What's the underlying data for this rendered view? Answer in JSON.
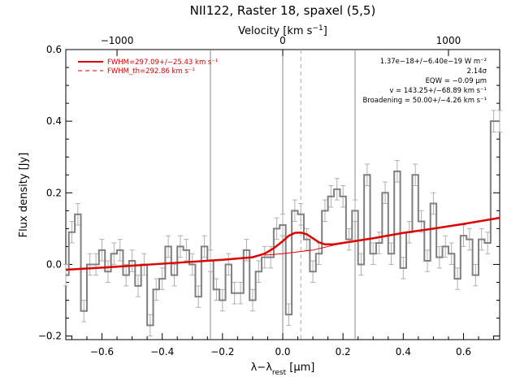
{
  "chart_data": {
    "type": "line",
    "title": "NII122, Raster 18, spaxel (5,5)",
    "xlabel": "λ−λ_rest [μm]",
    "xlabel_parts": {
      "lambda": "λ−λ",
      "sub": "rest",
      "unit": " [μm]"
    },
    "ylabel": "Flux density [Jy]",
    "top_axis_label": "Velocity [km s⁻¹]",
    "top_axis_label_parts": {
      "base": "Velocity [km s",
      "sup": "−1",
      "end": "]"
    },
    "xlim": [
      -0.72,
      0.72
    ],
    "ylim": [
      -0.21,
      0.6
    ],
    "x_ticks": [
      -0.6,
      -0.4,
      -0.2,
      0.0,
      0.2,
      0.4,
      0.6
    ],
    "x_tick_labels": [
      "−0.6",
      "−0.4",
      "−0.2",
      "0.0",
      "0.2",
      "0.4",
      "0.6"
    ],
    "y_ticks": [
      -0.2,
      0.0,
      0.2,
      0.4,
      0.6
    ],
    "y_tick_labels": [
      "−0.2",
      "0.0",
      "0.2",
      "0.4",
      "0.6"
    ],
    "top_ticks": [
      -1000,
      0,
      1000
    ],
    "top_tick_labels": [
      "−1000",
      "0",
      "1000"
    ],
    "top_tick_wavelength": [
      -0.55,
      0.0,
      0.55
    ],
    "vertical_lines": [
      -0.24,
      0.0,
      0.24
    ],
    "dashed_vertical_line": 0.06,
    "legend": [
      {
        "label": "FWHM=297.09+/−25.43 km s⁻¹",
        "style": "solid",
        "color": "#dd0000"
      },
      {
        "label": "FWHM_th=292.86 km s⁻¹",
        "style": "dashed",
        "color": "#dd0000"
      }
    ],
    "annotations": [
      "1.37e−18+/−6.40e−19 W m⁻²",
      "2.14σ",
      "EQW = −0.09 μm",
      "v = 143.25+/−68.89 km s⁻¹",
      "Broadening = 50.00+/−4.26 km s⁻¹"
    ],
    "series": [
      {
        "name": "",
        "style": "histogram",
        "color": "#808080",
        "bin_width": 0.02,
        "x": [
          -0.72,
          -0.7,
          -0.68,
          -0.66,
          -0.64,
          -0.62,
          -0.6,
          -0.58,
          -0.56,
          -0.54,
          -0.52,
          -0.5,
          -0.48,
          -0.46,
          -0.44,
          -0.42,
          -0.4,
          -0.38,
          -0.36,
          -0.34,
          -0.32,
          -0.3,
          -0.28,
          -0.26,
          -0.24,
          -0.22,
          -0.2,
          -0.18,
          -0.16,
          -0.14,
          -0.12,
          -0.1,
          -0.08,
          -0.06,
          -0.04,
          -0.02,
          0.0,
          0.02,
          0.04,
          0.06,
          0.08,
          0.1,
          0.12,
          0.14,
          0.16,
          0.18,
          0.2,
          0.22,
          0.24,
          0.26,
          0.28,
          0.3,
          0.32,
          0.34,
          0.36,
          0.38,
          0.4,
          0.42,
          0.44,
          0.46,
          0.48,
          0.5,
          0.52,
          0.54,
          0.56,
          0.58,
          0.6,
          0.62,
          0.64,
          0.66,
          0.68,
          0.7,
          0.72
        ],
        "values": [
          -0.03,
          0.09,
          0.14,
          -0.13,
          0.0,
          0.0,
          0.04,
          -0.02,
          0.03,
          0.04,
          -0.03,
          0.01,
          -0.06,
          0.0,
          -0.17,
          -0.07,
          -0.04,
          0.05,
          -0.03,
          0.05,
          0.04,
          0.0,
          -0.09,
          0.05,
          0.01,
          -0.07,
          -0.1,
          0.0,
          -0.08,
          -0.08,
          0.04,
          -0.1,
          -0.02,
          0.02,
          0.02,
          0.1,
          0.11,
          -0.14,
          0.15,
          0.14,
          0.07,
          -0.02,
          0.03,
          0.15,
          0.19,
          0.21,
          0.19,
          0.07,
          0.15,
          0.0,
          0.25,
          0.03,
          0.06,
          0.2,
          0.03,
          0.26,
          -0.01,
          0.09,
          0.25,
          0.12,
          0.01,
          0.17,
          0.02,
          0.05,
          0.03,
          -0.04,
          0.08,
          0.07,
          -0.03,
          0.07,
          0.06,
          0.4,
          0.4
        ],
        "error": [
          0.03,
          0.03,
          0.03,
          0.03,
          0.03,
          0.03,
          0.03,
          0.03,
          0.03,
          0.03,
          0.03,
          0.03,
          0.03,
          0.03,
          0.03,
          0.03,
          0.03,
          0.03,
          0.03,
          0.03,
          0.03,
          0.03,
          0.03,
          0.03,
          0.03,
          0.03,
          0.03,
          0.03,
          0.03,
          0.03,
          0.03,
          0.03,
          0.03,
          0.03,
          0.03,
          0.03,
          0.03,
          0.03,
          0.03,
          0.03,
          0.03,
          0.03,
          0.03,
          0.03,
          0.03,
          0.03,
          0.03,
          0.03,
          0.03,
          0.03,
          0.03,
          0.03,
          0.03,
          0.03,
          0.03,
          0.03,
          0.03,
          0.03,
          0.03,
          0.03,
          0.03,
          0.03,
          0.03,
          0.03,
          0.03,
          0.03,
          0.03,
          0.03,
          0.03,
          0.03,
          0.03,
          0.03,
          0.03
        ]
      },
      {
        "name": "",
        "style": "line",
        "color": "#dd0000",
        "x": [
          -0.72,
          -0.6,
          -0.4,
          -0.2,
          -0.1,
          -0.06,
          -0.03,
          0.0,
          0.02,
          0.04,
          0.06,
          0.08,
          0.1,
          0.12,
          0.14,
          0.17,
          0.2,
          0.3,
          0.4,
          0.5,
          0.6,
          0.72
        ],
        "values": [
          -0.015,
          -0.009,
          0.002,
          0.013,
          0.02,
          0.03,
          0.045,
          0.065,
          0.08,
          0.088,
          0.089,
          0.084,
          0.073,
          0.062,
          0.056,
          0.056,
          0.06,
          0.073,
          0.088,
          0.1,
          0.113,
          0.13
        ]
      },
      {
        "name": "",
        "style": "thin-line",
        "color": "#dd0000",
        "x": [
          -0.06,
          0.0,
          0.1,
          0.2
        ],
        "values": [
          0.026,
          0.03,
          0.04,
          0.06
        ]
      }
    ]
  }
}
